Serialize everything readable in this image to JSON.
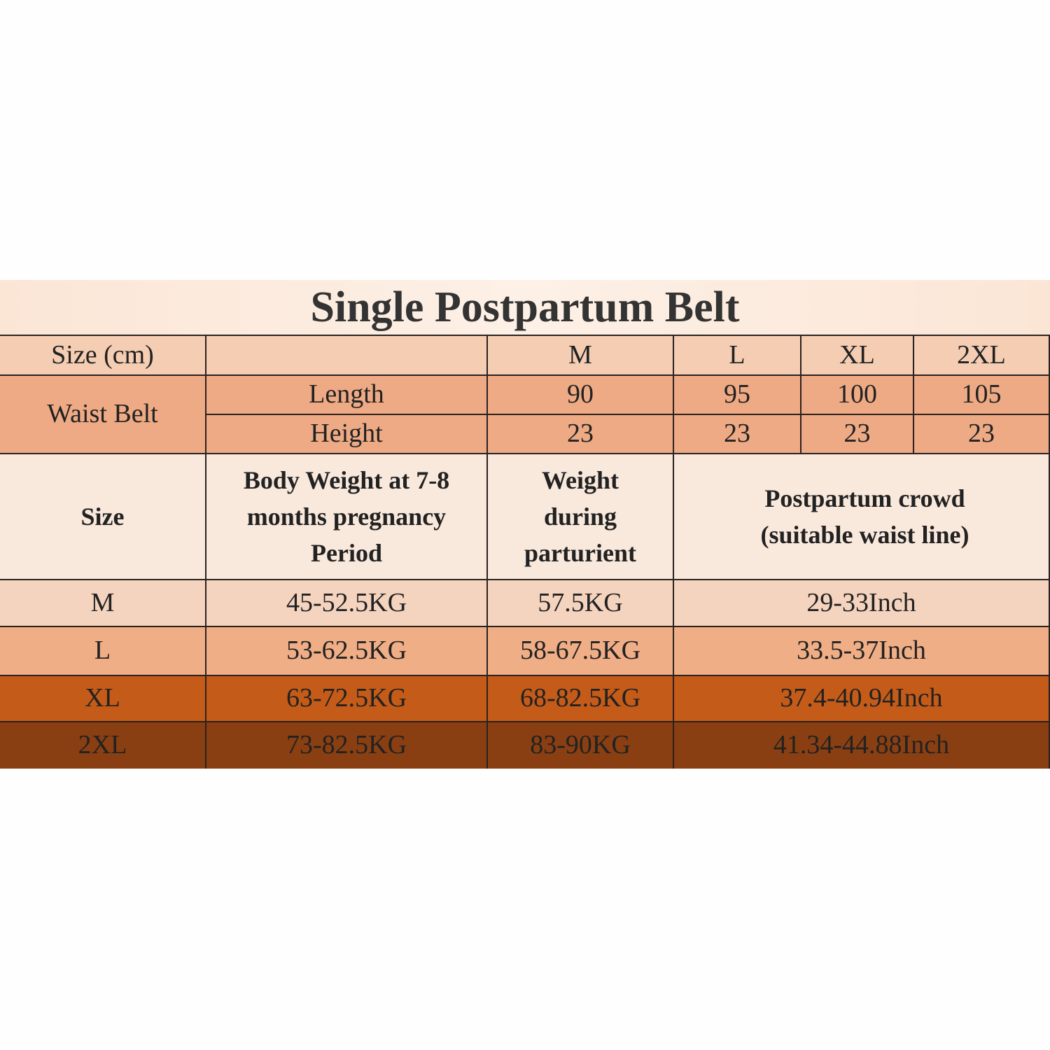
{
  "title": "Single Postpartum Belt",
  "belt_table": {
    "header": {
      "label": "Size (cm)",
      "sizes": [
        "M",
        "L",
        "XL",
        "2XL"
      ]
    },
    "group_label": "Waist Belt",
    "rows": [
      {
        "label": "Length",
        "values": [
          "90",
          "95",
          "100",
          "105"
        ]
      },
      {
        "label": "Height",
        "values": [
          "23",
          "23",
          "23",
          "23"
        ]
      }
    ]
  },
  "weight_table": {
    "headers": [
      "Size",
      "Body Weight at 7-8 months pregnancy Period",
      "Weight during parturient",
      "Postpartum crowd (suitable waist line)"
    ],
    "rows": [
      {
        "size": "M",
        "pregnancy": "45-52.5KG",
        "parturient": "57.5KG",
        "waist": "29-33Inch"
      },
      {
        "size": "L",
        "pregnancy": "53-62.5KG",
        "parturient": "58-67.5KG",
        "waist": "33.5-37Inch"
      },
      {
        "size": "XL",
        "pregnancy": "63-72.5KG",
        "parturient": "68-82.5KG",
        "waist": "37.4-40.94Inch"
      },
      {
        "size": "2XL",
        "pregnancy": "73-82.5KG",
        "parturient": "83-90KG",
        "waist": "41.34-44.88Inch"
      }
    ]
  },
  "colors": {
    "row_m": "#f5d4bf",
    "row_l": "#f0ae87",
    "row_xl": "#c55b18",
    "row_2xl": "#8a3f12",
    "waist_belt": "#eeaa84"
  }
}
